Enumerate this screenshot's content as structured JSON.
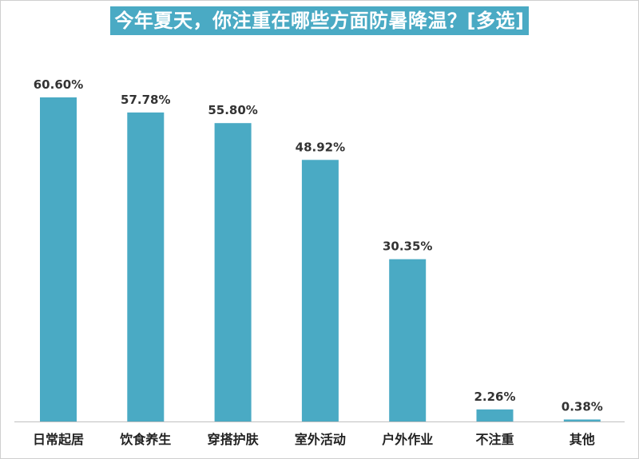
{
  "chart_data": {
    "type": "bar",
    "title": "今年夏天，你注重在哪些方面防暑降温？[多选]",
    "categories": [
      "日常起居",
      "饮食养生",
      "穿搭护肤",
      "室外活动",
      "户外作业",
      "不注重",
      "其他"
    ],
    "values": [
      60.6,
      57.78,
      55.8,
      48.92,
      30.35,
      2.26,
      0.38
    ],
    "value_labels": [
      "60.60%",
      "57.78%",
      "55.80%",
      "48.92%",
      "30.35%",
      "2.26%",
      "0.38%"
    ],
    "unit": "%",
    "ylim": [
      0,
      60.6
    ],
    "grid": false,
    "legend": "none",
    "bar_color": "#4aaac4",
    "axis_color": "#bfbfbf",
    "title_bg_color": "#4aaac4",
    "title_text_color": "#ffffff"
  }
}
